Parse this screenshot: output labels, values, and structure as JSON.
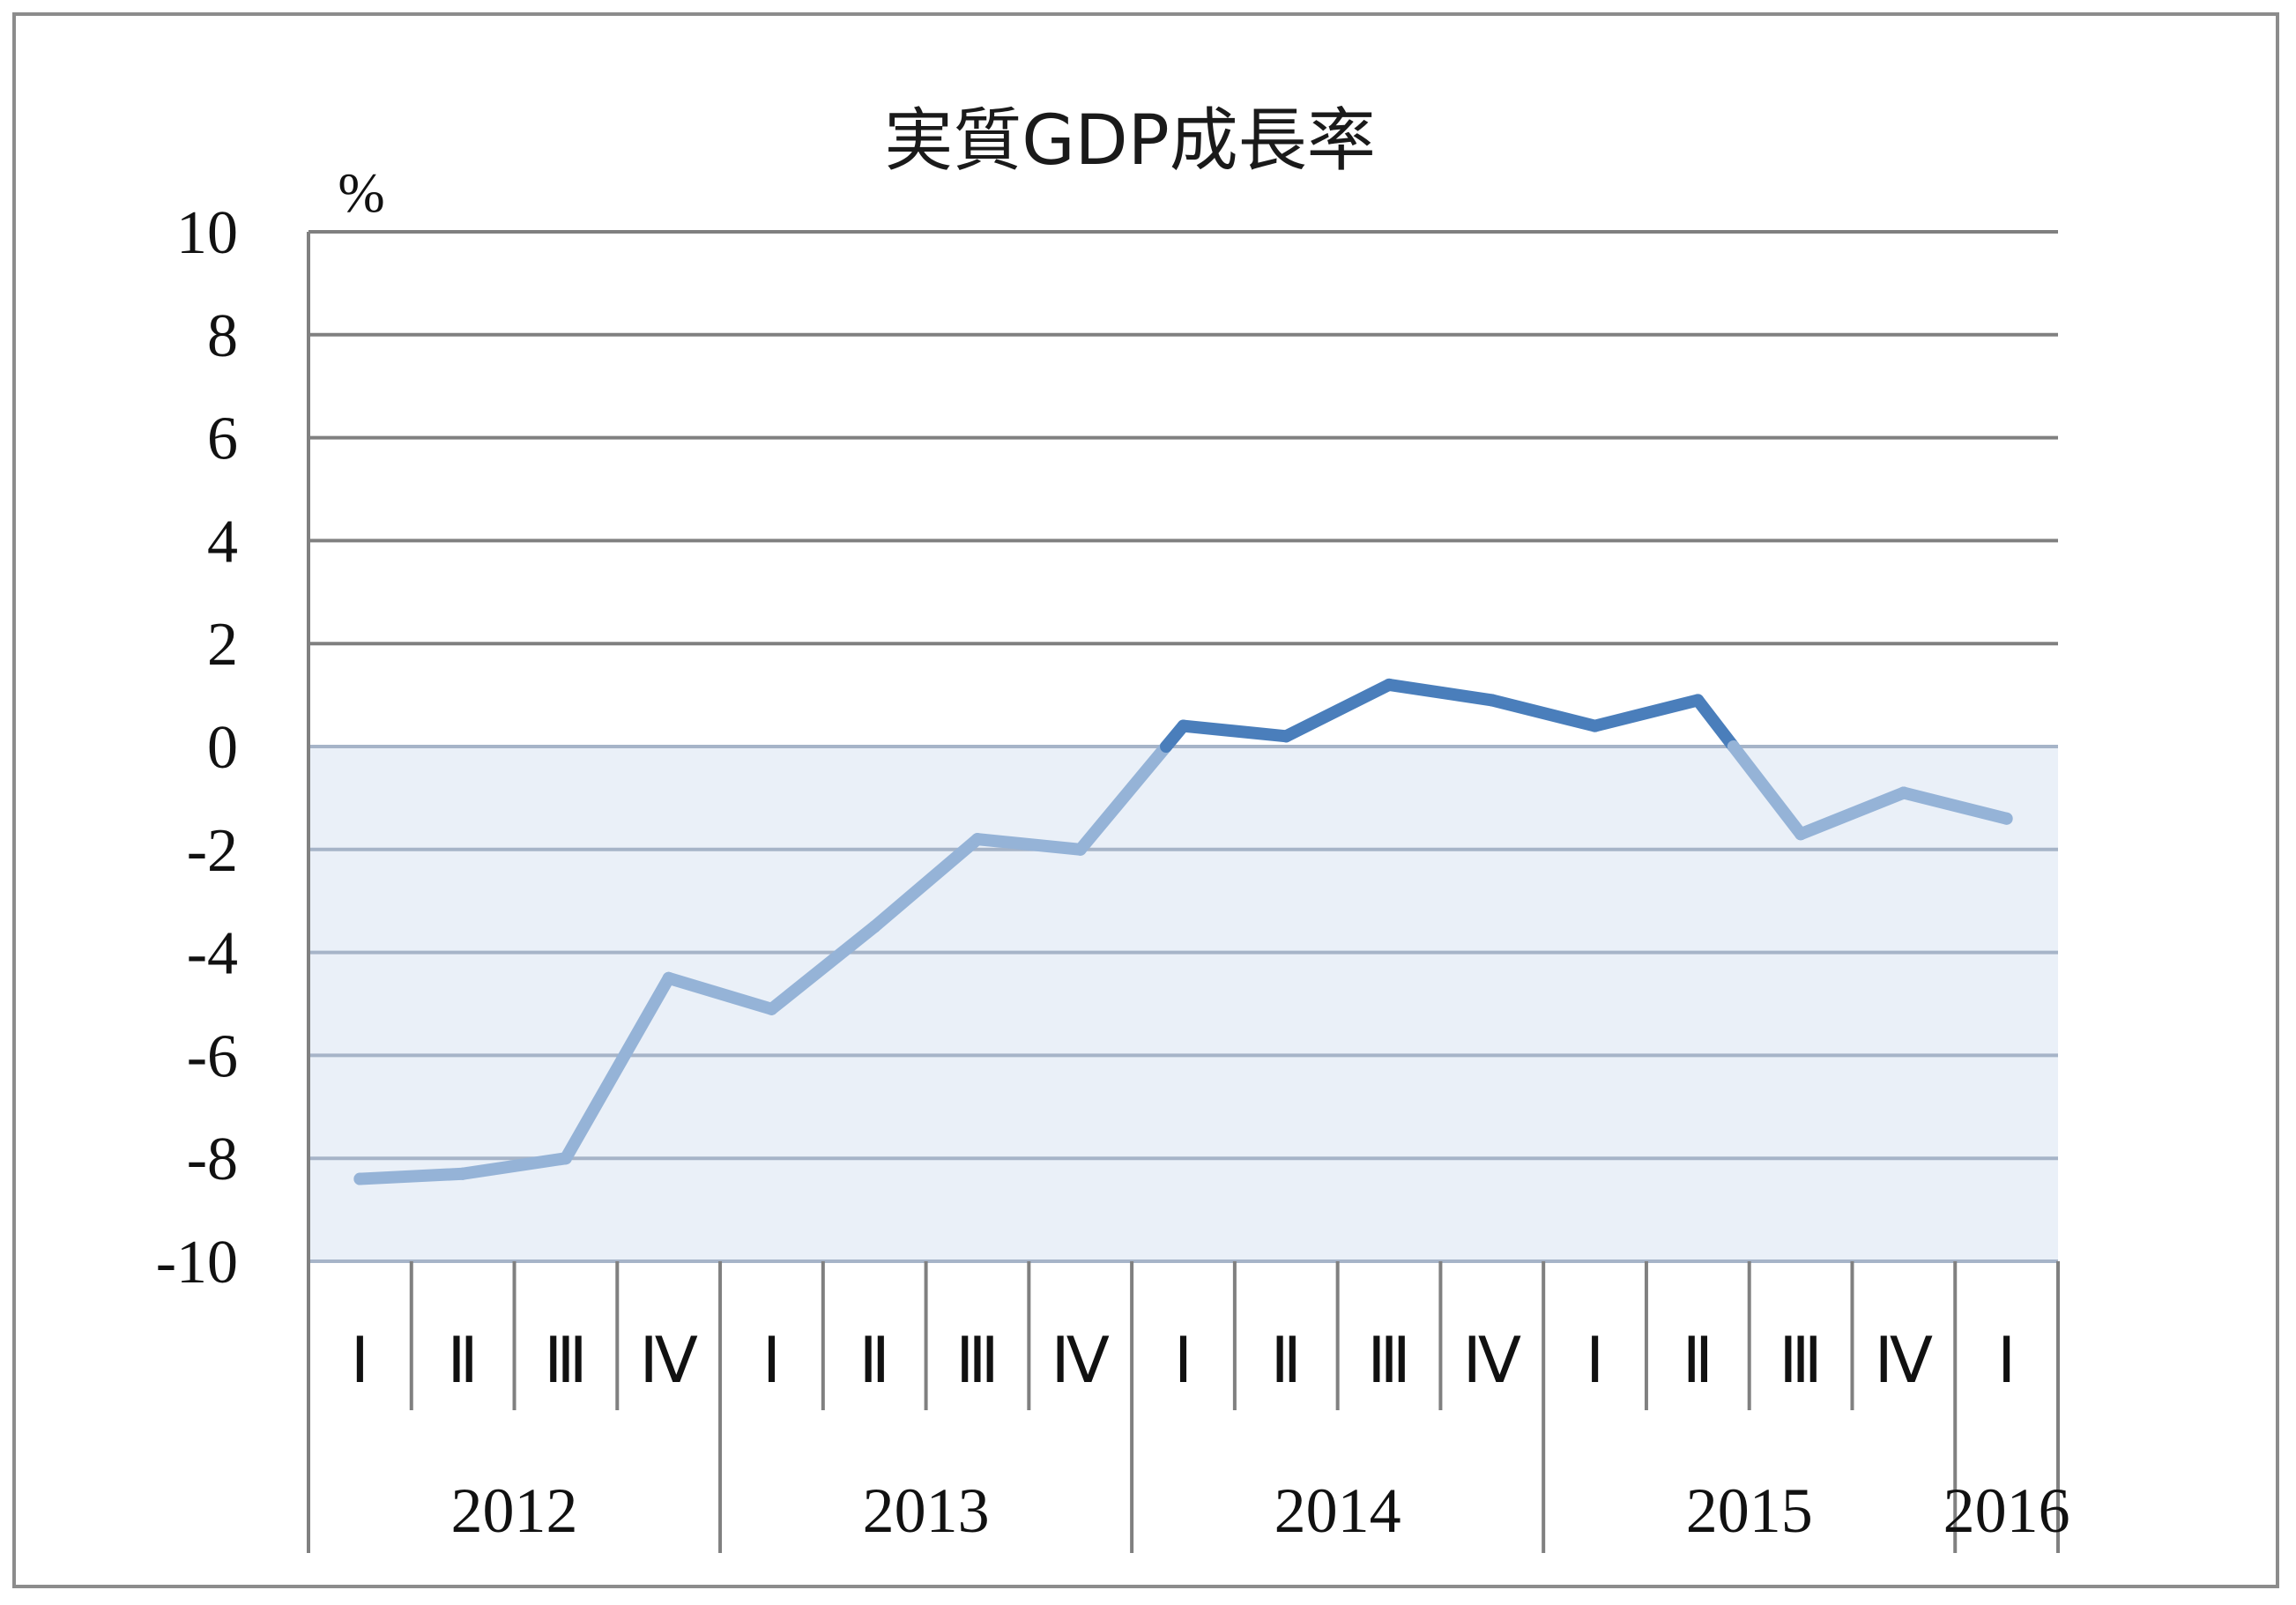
{
  "chart_data": {
    "type": "line",
    "title": "実質GDP成長率",
    "ylabel": "%",
    "xlabel": "",
    "ylim": [
      -10,
      10
    ],
    "yticks": [
      10,
      8,
      6,
      4,
      2,
      0,
      -2,
      -4,
      -6,
      -8,
      -10
    ],
    "ytick_labels": [
      "10",
      "8",
      "6",
      "4",
      "2",
      "0",
      "-2",
      "-4",
      "-6",
      "-8",
      "-10"
    ],
    "categories": [
      "Ⅰ",
      "Ⅱ",
      "Ⅲ",
      "Ⅳ",
      "Ⅰ",
      "Ⅱ",
      "Ⅲ",
      "Ⅳ",
      "Ⅰ",
      "Ⅱ",
      "Ⅲ",
      "Ⅳ",
      "Ⅰ",
      "Ⅱ",
      "Ⅲ",
      "Ⅳ",
      "Ⅰ"
    ],
    "year_groups": [
      {
        "label": "2012",
        "quarters": 4
      },
      {
        "label": "2013",
        "quarters": 4
      },
      {
        "label": "2014",
        "quarters": 4
      },
      {
        "label": "2015",
        "quarters": 4
      },
      {
        "label": "2016",
        "quarters": 1
      }
    ],
    "series": [
      {
        "values": [
          -8.4,
          -8.3,
          -8.0,
          -4.5,
          -5.1,
          -3.5,
          -1.8,
          -2.0,
          0.4,
          0.2,
          1.2,
          0.9,
          0.4,
          0.9,
          -1.7,
          -0.9,
          -1.4
        ]
      }
    ],
    "grid": true,
    "negative_region_shaded": true,
    "colors": {
      "line_positive": "#4a7ebb",
      "line_negative": "#95b3d7",
      "negative_band": "#eaf0f8",
      "grid_upper": "#808080",
      "grid_lower": "#a6b4c8",
      "axis": "#808080"
    }
  }
}
